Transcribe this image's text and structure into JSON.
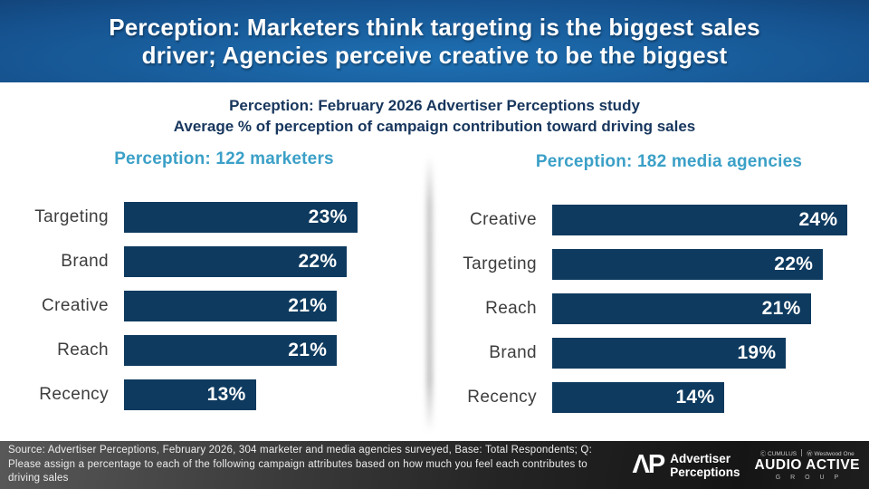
{
  "slide": {
    "title_line1": "Perception: Marketers think targeting is the biggest sales",
    "title_line2": "driver; Agencies perceive creative to be the biggest",
    "subtitle_line1": "Perception: February 2026 Advertiser Perceptions study",
    "subtitle_line2": "Average % of perception of campaign contribution toward driving sales"
  },
  "colors": {
    "header_center_blue": "#1e70b3",
    "header_edge_navy": "#0a1e3e",
    "bar_navy": "#0e3a5f",
    "chart_title_teal": "#3ba0c7",
    "subtitle_navy": "#17365d",
    "category_label_gray": "#3d3d3d",
    "footer_charcoal": "#2a2a2a"
  },
  "chart_data": [
    {
      "type": "bar",
      "orientation": "horizontal",
      "title": "Perception: 122 marketers",
      "categories": [
        "Targeting",
        "Brand",
        "Creative",
        "Reach",
        "Recency"
      ],
      "values": [
        23,
        22,
        21,
        21,
        13
      ],
      "value_suffix": "%",
      "xlim": [
        0,
        25
      ],
      "data_labels": "inside-end",
      "grid": false,
      "bar_color": "#0e3a5f"
    },
    {
      "type": "bar",
      "orientation": "horizontal",
      "title": "Perception: 182 media agencies",
      "categories": [
        "Creative",
        "Targeting",
        "Reach",
        "Brand",
        "Recency"
      ],
      "values": [
        24,
        22,
        21,
        19,
        14
      ],
      "value_suffix": "%",
      "xlim": [
        0,
        25
      ],
      "data_labels": "inside-end",
      "grid": false,
      "bar_color": "#0e3a5f"
    }
  ],
  "footer": {
    "source_text": "Source: Advertiser Perceptions, February 2026, 304 marketer and media agencies surveyed, Base: Total Respondents; Q: Please assign a percentage to each of the following campaign attributes based on how much you feel each contributes to driving sales",
    "ap_monogram": "ΛP",
    "ap_line1": "Advertiser",
    "ap_line2": "Perceptions",
    "cumulus_label": "Ⓒ CUMULUS",
    "westwood_label": "Ⓦ Westwood One",
    "audio_active": "AUDIO ACTIVE",
    "group_label": "G R O U P"
  }
}
